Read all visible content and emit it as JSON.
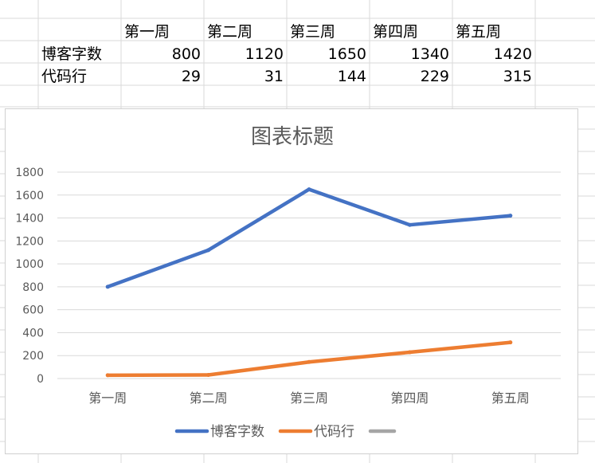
{
  "sheet": {
    "header_row": [
      "",
      "第一周",
      "第二周",
      "第三周",
      "第四周",
      "第五周"
    ],
    "rows": [
      {
        "label": "博客字数",
        "values": [
          "800",
          "1120",
          "1650",
          "1340",
          "1420"
        ]
      },
      {
        "label": "代码行",
        "values": [
          "29",
          "31",
          "144",
          "229",
          "315"
        ]
      }
    ]
  },
  "chart_data": {
    "type": "line",
    "title": "图表标题",
    "categories": [
      "第一周",
      "第二周",
      "第三周",
      "第四周",
      "第五周"
    ],
    "series": [
      {
        "name": "博客字数",
        "color": "#4472c4",
        "values": [
          800,
          1120,
          1650,
          1340,
          1420
        ]
      },
      {
        "name": "代码行",
        "color": "#ed7d31",
        "values": [
          29,
          31,
          144,
          229,
          315
        ]
      }
    ],
    "legend_extra_color": "#a5a5a5",
    "ylim": [
      0,
      1800
    ],
    "yticks": [
      0,
      200,
      400,
      600,
      800,
      1000,
      1200,
      1400,
      1600,
      1800
    ],
    "grid": true,
    "legend_position": "bottom",
    "xlabel": "",
    "ylabel": ""
  }
}
